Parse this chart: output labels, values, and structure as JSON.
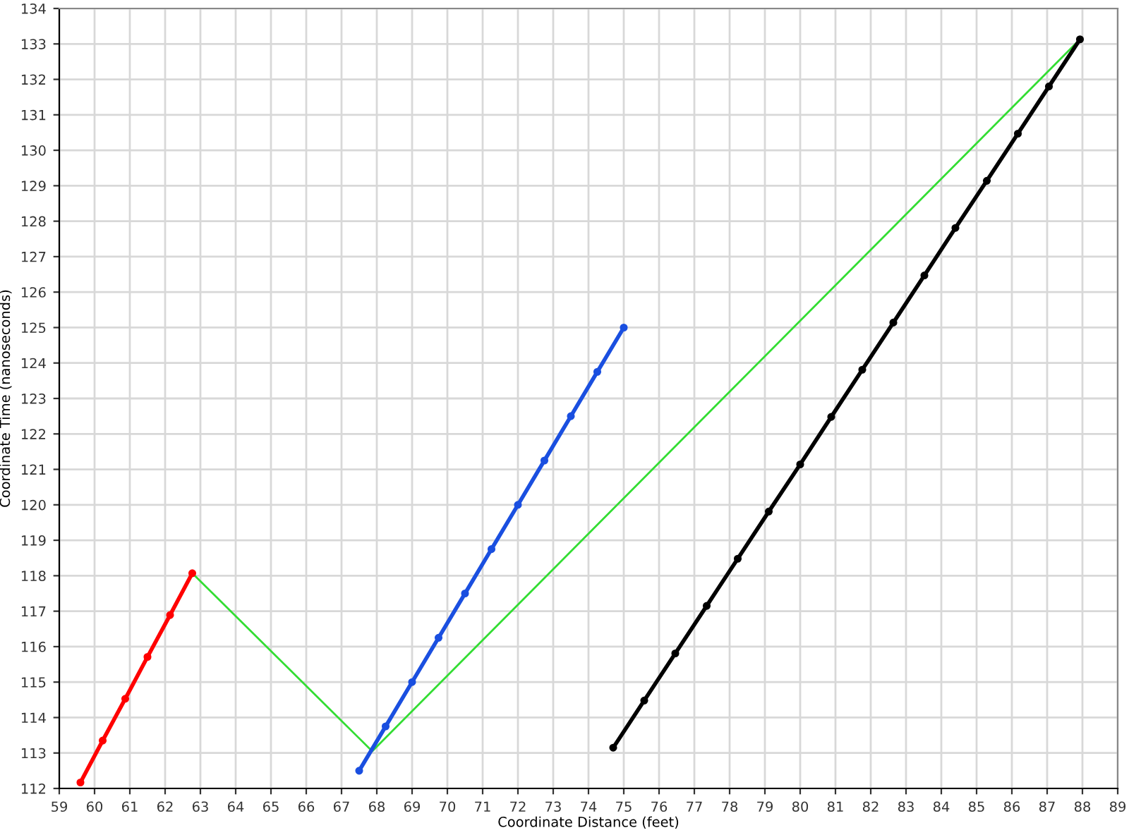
{
  "chart_data": {
    "type": "line",
    "xlabel": "Coordinate Distance (feet)",
    "ylabel": "Coordinate Time (nanoseconds)",
    "xlim": [
      59,
      89
    ],
    "ylim": [
      112,
      134
    ],
    "xticks": [
      59,
      60,
      61,
      62,
      63,
      64,
      65,
      66,
      67,
      68,
      69,
      70,
      71,
      72,
      73,
      74,
      75,
      76,
      77,
      78,
      79,
      80,
      81,
      82,
      83,
      84,
      85,
      86,
      87,
      88,
      89
    ],
    "yticks": [
      112,
      113,
      114,
      115,
      116,
      117,
      118,
      119,
      120,
      121,
      122,
      123,
      124,
      125,
      126,
      127,
      128,
      129,
      130,
      131,
      132,
      133,
      134
    ],
    "grid": true,
    "line_style": "solid",
    "series": [
      {
        "color": "#ff0000",
        "marker": "circle",
        "x": [
          59.6,
          60.23,
          60.87,
          61.5,
          62.14,
          62.77
        ],
        "values": [
          112.17,
          113.35,
          114.53,
          115.71,
          116.89,
          118.07
        ]
      },
      {
        "color": "#1a4fe0",
        "marker": "circle",
        "x": [
          67.5,
          68.25,
          69,
          69.75,
          70.5,
          71.25,
          72,
          72.75,
          73.5,
          74.25,
          75
        ],
        "values": [
          112.5,
          113.75,
          115,
          116.25,
          117.5,
          118.75,
          120,
          121.25,
          122.5,
          123.75,
          125
        ]
      },
      {
        "color": "#000000",
        "marker": "circle",
        "x": [
          74.7,
          75.58,
          76.46,
          77.35,
          78.23,
          79.11,
          80.0,
          80.88,
          81.76,
          82.64,
          83.52,
          84.4,
          85.29,
          86.17,
          87.05,
          87.93
        ],
        "values": [
          113.15,
          114.48,
          115.81,
          117.15,
          118.48,
          119.81,
          121.14,
          122.48,
          123.81,
          125.14,
          126.47,
          127.81,
          129.14,
          130.47,
          131.8,
          133.13
        ]
      },
      {
        "color": "#33dd33",
        "marker": "none",
        "x": [
          62.77,
          67.87,
          87.93
        ],
        "values": [
          118.07,
          113.05,
          133.13
        ]
      }
    ]
  }
}
